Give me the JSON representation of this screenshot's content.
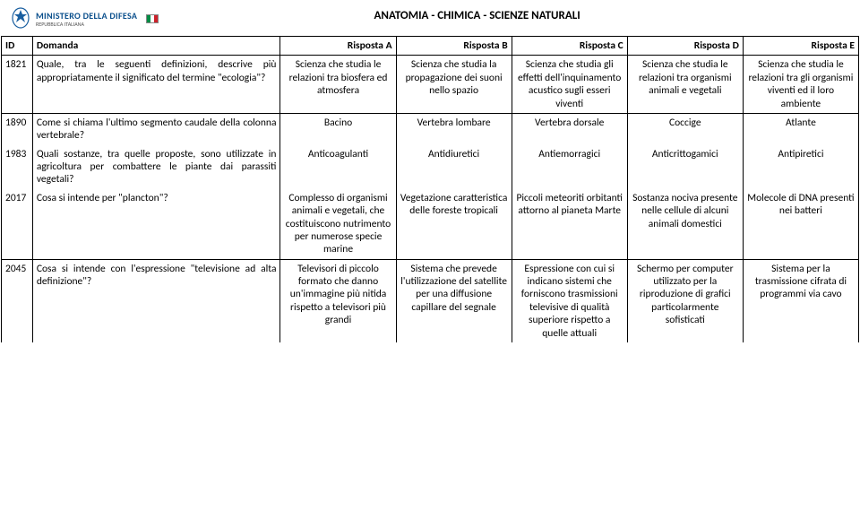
{
  "logo": {
    "line1": "MINISTERO DELLA DIFESA",
    "line2": "REPUBBLICA ITALIANA",
    "flag_colors": [
      "#008C45",
      "#ffffff",
      "#CD212A"
    ],
    "emblem_color": "#1a5fa0"
  },
  "title": "ANATOMIA - CHIMICA - SCIENZE NATURALI",
  "columns": {
    "id": "ID",
    "q": "Domanda",
    "a": "Risposta A",
    "b": "Risposta B",
    "c": "Risposta C",
    "d": "Risposta D",
    "e": "Risposta E"
  },
  "rows": [
    {
      "id": "1821",
      "q": "Quale, tra le seguenti definizioni, descrive più appropriatamente il significato del termine \"ecologia\"?",
      "a": "Scienza che studia le relazioni tra biosfera ed atmosfera",
      "b": "Scienza che studia la propagazione dei suoni nello spazio",
      "c": "Scienza che studia gli effetti dell'inquinamento acustico sugli esseri viventi",
      "d": "Scienza che studia le relazioni tra organismi animali e vegetali",
      "e": "Scienza che studia le relazioni tra gli organismi viventi ed il loro ambiente"
    },
    {
      "id": "1890",
      "q": "Come si chiama l'ultimo segmento caudale della colonna vertebrale?",
      "a": "Bacino",
      "b": "Vertebra lombare",
      "c": "Vertebra dorsale",
      "d": "Coccige",
      "e": "Atlante"
    },
    {
      "id": "1983",
      "q": "Quali sostanze, tra quelle proposte, sono utilizzate in agricoltura per combattere le piante dai parassiti vegetali?",
      "a": "Anticoagulanti",
      "b": "Antidiuretici",
      "c": "Antiemorragici",
      "d": "Anticrittogamici",
      "e": "Antipiretici"
    },
    {
      "id": "2017",
      "q": "Cosa si intende per \"plancton\"?",
      "a": "Complesso di organismi animali e vegetali, che costituiscono nutrimento per numerose specie marine",
      "b": "Vegetazione caratteristica delle foreste tropicali",
      "c": "Piccoli meteoriti orbitanti attorno al pianeta Marte",
      "d": "Sostanza nociva presente nelle cellule di alcuni animali domestici",
      "e": "Molecole di DNA presenti nei batteri"
    },
    {
      "id": "2045",
      "q": "Cosa si intende con l'espressione \"televisione ad alta definizione\"?",
      "a": "Televisori di piccolo formato che danno un'immagine più nitida rispetto a televisori più grandi",
      "b": "Sistema che prevede l'utilizzazione del satellite per una diffusione capillare del segnale",
      "c": "Espressione con cui si indicano sistemi che forniscono trasmissioni televisive di qualità superiore rispetto a quelle attuali",
      "d": "Schermo per computer utilizzato per la riproduzione di grafici particolarmente sofisticati",
      "e": "Sistema per la trasmissione cifrata di programmi via cavo"
    }
  ],
  "group_breaks": [
    1,
    4
  ]
}
